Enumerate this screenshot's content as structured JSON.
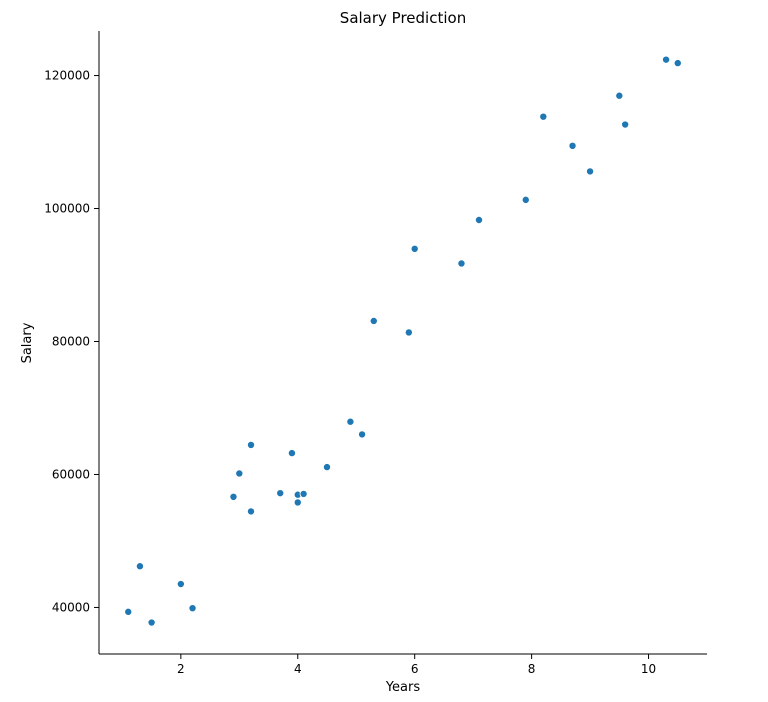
{
  "chart_data": {
    "type": "scatter",
    "title": "Salary Prediction",
    "xlabel": "Years",
    "ylabel": "Salary",
    "xlim": [
      0.6,
      11.0
    ],
    "ylim": [
      33000,
      126700
    ],
    "xticks": [
      2,
      4,
      6,
      8,
      10
    ],
    "yticks": [
      40000,
      60000,
      80000,
      100000,
      120000
    ],
    "grid": false,
    "legend": "none",
    "point_color": "#1f77b4",
    "x": [
      1.1,
      1.3,
      1.5,
      2.0,
      2.2,
      2.9,
      3.0,
      3.2,
      3.2,
      3.7,
      3.9,
      4.0,
      4.0,
      4.1,
      4.5,
      4.9,
      5.1,
      5.3,
      5.9,
      6.0,
      6.8,
      7.1,
      7.9,
      8.2,
      8.7,
      9.0,
      9.5,
      9.6,
      10.3,
      10.5
    ],
    "y": [
      39343,
      46205,
      37731,
      43525,
      39891,
      56642,
      60150,
      54445,
      64445,
      57189,
      63218,
      55794,
      56957,
      57081,
      61111,
      67938,
      66029,
      83088,
      81363,
      93940,
      91738,
      98273,
      101302,
      113812,
      109431,
      105582,
      116969,
      112635,
      122391,
      121872
    ]
  }
}
